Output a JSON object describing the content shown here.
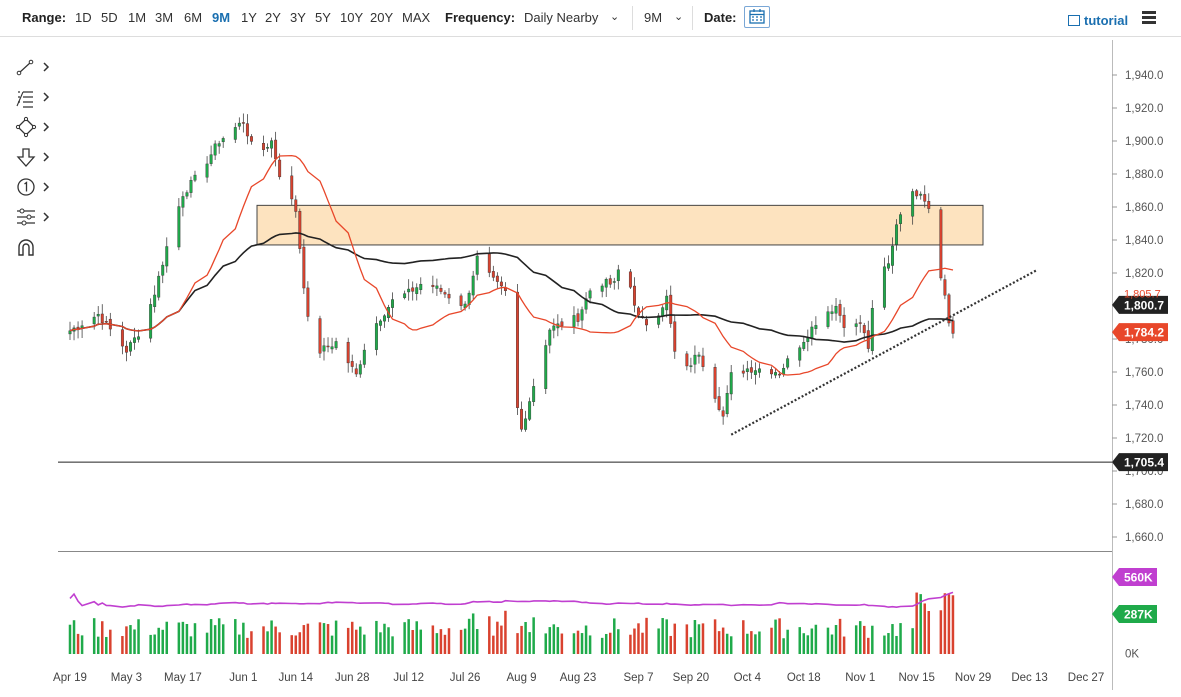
{
  "toolbar": {
    "range_label": "Range:",
    "ranges": [
      "1D",
      "5D",
      "1M",
      "3M",
      "6M",
      "9M",
      "1Y",
      "2Y",
      "3Y",
      "5Y",
      "10Y",
      "20Y",
      "MAX"
    ],
    "active_range": "9M",
    "frequency_label": "Frequency:",
    "frequency_value": "Daily Nearby",
    "period_value": "9M",
    "date_label": "Date:",
    "tutorial_label": "tutorial"
  },
  "drawing_tools": [
    "line-tool-icon",
    "fibonacci-tool-icon",
    "shape-tool-icon",
    "arrow-tool-icon",
    "annotation-tool-icon",
    "measure-tool-icon",
    "magnet-icon"
  ],
  "colors": {
    "up": "#1faa4a",
    "down": "#d9422f",
    "ma_short": "#e8472a",
    "ma_long": "#222222",
    "volume_avg": "#c03fd0",
    "zone_fill": "#fde3bf"
  },
  "chart_data": {
    "type": "candlestick",
    "price_axis": {
      "min": 1660,
      "max": 1940,
      "ticks": [
        "1,940.0",
        "1,920.0",
        "1,900.0",
        "1,880.0",
        "1,860.0",
        "1,840.0",
        "1,820.0",
        "1,800.0",
        "1,780.0",
        "1,760.0",
        "1,740.0",
        "1,720.0",
        "1,700.0",
        "1,680.0",
        "1,660.0"
      ]
    },
    "x_axis": {
      "ticks": [
        "Apr 19",
        "May 3",
        "May 17",
        "Jun 1",
        "Jun 14",
        "Jun 28",
        "Jul 12",
        "Jul 26",
        "Aug 9",
        "Aug 23",
        "Sep 7",
        "Sep 20",
        "Oct 4",
        "Oct 18",
        "Nov 1",
        "Nov 15",
        "Nov 29",
        "Dec 13",
        "Dec 27"
      ]
    },
    "price_labels": [
      {
        "text": "1,800.7",
        "kind": "ma_long"
      },
      {
        "text": "1,784.2",
        "kind": "last"
      },
      {
        "text": "1,705.4",
        "kind": "line"
      }
    ],
    "hidden_label": "1,805.7",
    "horizontal_line": 1705.4,
    "resistance_zone": {
      "from": 1837,
      "to": 1861
    },
    "trendline": {
      "start_price": 1722,
      "end_price": 1822
    },
    "volume_axis": [
      "560K",
      "287K",
      "0K"
    ],
    "anchors": [
      [
        "Apr 19",
        1785
      ],
      [
        "Apr 26",
        1795
      ],
      [
        "May 3",
        1773
      ],
      [
        "May 7",
        1787
      ],
      [
        "May 10",
        1808
      ],
      [
        "May 14",
        1845
      ],
      [
        "May 17",
        1868
      ],
      [
        "May 21",
        1880
      ],
      [
        "May 26",
        1900
      ],
      [
        "Jun 1",
        1912
      ],
      [
        "Jun 4",
        1890
      ],
      [
        "Jun 8",
        1900
      ],
      [
        "Jun 10",
        1880
      ],
      [
        "Jun 14",
        1858
      ],
      [
        "Jun 16",
        1813
      ],
      [
        "Jun 18",
        1770
      ],
      [
        "Jun 24",
        1778
      ],
      [
        "Jun 29",
        1758
      ],
      [
        "Jul 2",
        1783
      ],
      [
        "Jul 8",
        1803
      ],
      [
        "Jul 12",
        1808
      ],
      [
        "Jul 16",
        1815
      ],
      [
        "Jul 22",
        1806
      ],
      [
        "Jul 26",
        1800
      ],
      [
        "Jul 29",
        1829
      ],
      [
        "Aug 2",
        1815
      ],
      [
        "Aug 5",
        1808
      ],
      [
        "Aug 6",
        1763
      ],
      [
        "Aug 9",
        1725
      ],
      [
        "Aug 12",
        1752
      ],
      [
        "Aug 16",
        1786
      ],
      [
        "Aug 23",
        1793
      ],
      [
        "Aug 27",
        1815
      ],
      [
        "Sep 1",
        1813
      ],
      [
        "Sep 3",
        1830
      ],
      [
        "Sep 7",
        1793
      ],
      [
        "Sep 10",
        1788
      ],
      [
        "Sep 14",
        1805
      ],
      [
        "Sep 17",
        1755
      ],
      [
        "Sep 22",
        1772
      ],
      [
        "Sep 28",
        1733
      ],
      [
        "Sep 30",
        1758
      ],
      [
        "Oct 4",
        1762
      ],
      [
        "Oct 8",
        1762
      ],
      [
        "Oct 12",
        1760
      ],
      [
        "Oct 15",
        1770
      ],
      [
        "Oct 19",
        1783
      ],
      [
        "Oct 22",
        1794
      ],
      [
        "Oct 26",
        1800
      ],
      [
        "Oct 29",
        1784
      ],
      [
        "Nov 1",
        1790
      ],
      [
        "Nov 3",
        1775
      ],
      [
        "Nov 5",
        1818
      ],
      [
        "Nov 8",
        1825
      ],
      [
        "Nov 10",
        1850
      ],
      [
        "Nov 12",
        1865
      ],
      [
        "Nov 16",
        1870
      ],
      [
        "Nov 18",
        1860
      ],
      [
        "Nov 19",
        1846
      ],
      [
        "Nov 22",
        1806
      ],
      [
        "Nov 23",
        1790
      ],
      [
        "Nov 24",
        1784
      ]
    ]
  }
}
